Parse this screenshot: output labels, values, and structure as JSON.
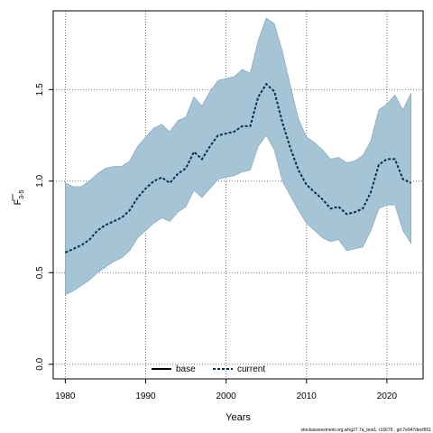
{
  "chart_data": {
    "type": "line",
    "xlabel": "Years",
    "ylabel": "F",
    "ylabel_subscript": "3-5",
    "xlim": [
      1978.5,
      2024.5
    ],
    "ylim": [
      -0.08,
      1.93
    ],
    "x_ticks": [
      1980,
      1990,
      2000,
      2010,
      2020
    ],
    "y_ticks": [
      0.0,
      0.5,
      1.0,
      1.5
    ],
    "y_tick_labels": [
      "0.0",
      "0.5",
      "1.0",
      "1.5"
    ],
    "grid": "dotted",
    "footer": "stockassessment.org,whg27.7a_test1, r16679 , git:7e947decf651",
    "legend": [
      {
        "label": "base",
        "style": "solid",
        "color": "#000000"
      },
      {
        "label": "current",
        "style": "dashed",
        "color": "#00314e"
      }
    ],
    "band": {
      "color": "#a5c5d6",
      "edge_color": "#7f9fb0",
      "x": [
        1980,
        1981,
        1982,
        1983,
        1984,
        1985,
        1986,
        1987,
        1988,
        1989,
        1990,
        1991,
        1992,
        1993,
        1994,
        1995,
        1996,
        1997,
        1998,
        1999,
        2000,
        2001,
        2002,
        2003,
        2004,
        2005,
        2006,
        2007,
        2008,
        2009,
        2010,
        2011,
        2012,
        2013,
        2014,
        2015,
        2016,
        2017,
        2018,
        2019,
        2020,
        2021,
        2022,
        2023
      ],
      "upper": [
        0.99,
        0.97,
        0.97,
        1.0,
        1.04,
        1.07,
        1.08,
        1.08,
        1.11,
        1.19,
        1.24,
        1.29,
        1.31,
        1.27,
        1.33,
        1.35,
        1.46,
        1.41,
        1.49,
        1.55,
        1.56,
        1.57,
        1.61,
        1.59,
        1.77,
        1.89,
        1.86,
        1.71,
        1.52,
        1.34,
        1.24,
        1.21,
        1.17,
        1.12,
        1.13,
        1.1,
        1.11,
        1.14,
        1.22,
        1.39,
        1.42,
        1.47,
        1.39,
        1.48
      ],
      "lower": [
        0.38,
        0.4,
        0.43,
        0.46,
        0.5,
        0.53,
        0.56,
        0.58,
        0.62,
        0.69,
        0.73,
        0.77,
        0.8,
        0.78,
        0.83,
        0.86,
        0.95,
        0.91,
        0.96,
        1.01,
        1.02,
        1.03,
        1.05,
        1.06,
        1.19,
        1.25,
        1.17,
        1.0,
        0.92,
        0.84,
        0.77,
        0.73,
        0.69,
        0.67,
        0.68,
        0.62,
        0.63,
        0.64,
        0.73,
        0.85,
        0.87,
        0.87,
        0.73,
        0.66
      ]
    },
    "series": [
      {
        "name": "current",
        "color": "#00314e",
        "x": [
          1980,
          1981,
          1982,
          1983,
          1984,
          1985,
          1986,
          1987,
          1988,
          1989,
          1990,
          1991,
          1992,
          1993,
          1994,
          1995,
          1996,
          1997,
          1998,
          1999,
          2000,
          2001,
          2002,
          2003,
          2004,
          2005,
          2006,
          2007,
          2008,
          2009,
          2010,
          2011,
          2012,
          2013,
          2014,
          2015,
          2016,
          2017,
          2018,
          2019,
          2020,
          2021,
          2022,
          2023
        ],
        "values": [
          0.61,
          0.63,
          0.65,
          0.68,
          0.73,
          0.76,
          0.78,
          0.8,
          0.84,
          0.91,
          0.96,
          1.0,
          1.02,
          0.99,
          1.04,
          1.07,
          1.16,
          1.12,
          1.19,
          1.25,
          1.26,
          1.27,
          1.3,
          1.3,
          1.46,
          1.53,
          1.49,
          1.32,
          1.18,
          1.06,
          0.98,
          0.94,
          0.9,
          0.85,
          0.86,
          0.82,
          0.83,
          0.85,
          0.94,
          1.09,
          1.12,
          1.12,
          1.01,
          0.99
        ]
      }
    ]
  }
}
